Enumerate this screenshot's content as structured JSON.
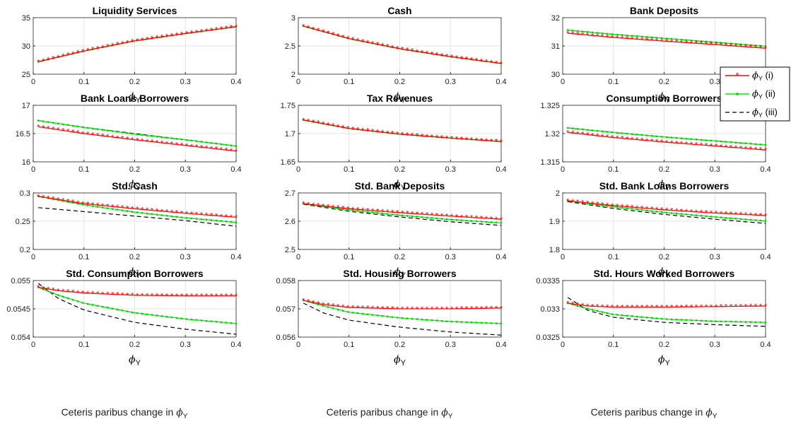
{
  "figure": {
    "bottom_caption": "Ceteris paribus change in",
    "bottom_caption_symbol": "ϕ",
    "bottom_caption_subscript": "Y",
    "x_label_symbol": "ϕ",
    "x_label_subscript": "Y"
  },
  "legend": {
    "entries": [
      {
        "symbol": "ϕ",
        "subscript": "Y",
        "suffix": "(i)",
        "color": "#ff0000",
        "style": "red line with asterisk markers"
      },
      {
        "symbol": "ϕ",
        "subscript": "Y",
        "suffix": "(ii)",
        "color": "#00ee00",
        "style": "green line with dot markers"
      },
      {
        "symbol": "ϕ",
        "subscript": "Y",
        "suffix": "(iii)",
        "color": "#000000",
        "style": "black dashed line"
      }
    ],
    "placement": "right of top-right panel"
  },
  "chart_data": [
    {
      "type": "line",
      "title": "Liquidity Services",
      "xlabel": "ϕY",
      "xlim": [
        0,
        0.4
      ],
      "ylim": [
        25,
        35
      ],
      "xticks": [
        "0",
        "0.1",
        "0.2",
        "0.3",
        "0.4"
      ],
      "yticks": [
        "25",
        "30",
        "35"
      ],
      "series": [
        {
          "name": "ϕY (i)",
          "color": "#ff0000",
          "x": [
            0.01,
            0.1,
            0.2,
            0.3,
            0.4
          ],
          "y": [
            27.2,
            29.1,
            30.9,
            32.2,
            33.4
          ]
        },
        {
          "name": "ϕY (ii)",
          "color": "#00ee00",
          "x": [
            0.01,
            0.1,
            0.2,
            0.3,
            0.4
          ],
          "y": [
            27.2,
            29.1,
            30.9,
            32.2,
            33.4
          ]
        },
        {
          "name": "ϕY (iii)",
          "color": "#000000",
          "x": [
            0.01,
            0.1,
            0.2,
            0.3,
            0.4
          ],
          "y": [
            27.2,
            29.1,
            30.9,
            32.2,
            33.4
          ]
        }
      ]
    },
    {
      "type": "line",
      "title": "Cash",
      "xlabel": "ϕY",
      "xlim": [
        0,
        0.4
      ],
      "ylim": [
        2,
        3
      ],
      "xticks": [
        "0",
        "0.1",
        "0.2",
        "0.3",
        "0.4"
      ],
      "yticks": [
        "2",
        "2.5",
        "3"
      ],
      "series": [
        {
          "name": "ϕY (i)",
          "color": "#ff0000",
          "x": [
            0.01,
            0.1,
            0.2,
            0.3,
            0.4
          ],
          "y": [
            2.85,
            2.63,
            2.45,
            2.31,
            2.19
          ]
        },
        {
          "name": "ϕY (ii)",
          "color": "#00ee00",
          "x": [
            0.01,
            0.1,
            0.2,
            0.3,
            0.4
          ],
          "y": [
            2.85,
            2.63,
            2.45,
            2.31,
            2.19
          ]
        },
        {
          "name": "ϕY (iii)",
          "color": "#000000",
          "x": [
            0.01,
            0.1,
            0.2,
            0.3,
            0.4
          ],
          "y": [
            2.85,
            2.63,
            2.45,
            2.31,
            2.19
          ]
        }
      ]
    },
    {
      "type": "line",
      "title": "Bank Deposits",
      "xlabel": "ϕY",
      "xlim": [
        0,
        0.4
      ],
      "ylim": [
        30,
        32
      ],
      "xticks": [
        "0",
        "0.1",
        "0.2",
        "0.3",
        "0.4"
      ],
      "yticks": [
        "30",
        "31",
        "32"
      ],
      "series": [
        {
          "name": "ϕY (i)",
          "color": "#ff0000",
          "x": [
            0.01,
            0.1,
            0.2,
            0.3,
            0.4
          ],
          "y": [
            31.45,
            31.3,
            31.17,
            31.05,
            30.92
          ]
        },
        {
          "name": "ϕY (ii)",
          "color": "#00ee00",
          "x": [
            0.01,
            0.1,
            0.2,
            0.3,
            0.4
          ],
          "y": [
            31.56,
            31.41,
            31.27,
            31.13,
            30.99
          ]
        },
        {
          "name": "ϕY (iii)",
          "color": "#000000",
          "x": [
            0.01,
            0.1,
            0.2,
            0.3,
            0.4
          ],
          "y": [
            31.56,
            31.41,
            31.27,
            31.13,
            30.99
          ]
        }
      ]
    },
    {
      "type": "line",
      "title": "Bank Loans Borrowers",
      "xlabel": "ϕY",
      "xlim": [
        0,
        0.4
      ],
      "ylim": [
        16,
        17
      ],
      "xticks": [
        "0",
        "0.1",
        "0.2",
        "0.3",
        "0.4"
      ],
      "yticks": [
        "16",
        "16.5",
        "17"
      ],
      "series": [
        {
          "name": "ϕY (i)",
          "color": "#ff0000",
          "x": [
            0.01,
            0.1,
            0.2,
            0.3,
            0.4
          ],
          "y": [
            16.62,
            16.5,
            16.39,
            16.29,
            16.19
          ]
        },
        {
          "name": "ϕY (ii)",
          "color": "#00ee00",
          "x": [
            0.01,
            0.1,
            0.2,
            0.3,
            0.4
          ],
          "y": [
            16.73,
            16.61,
            16.49,
            16.39,
            16.28
          ]
        },
        {
          "name": "ϕY (iii)",
          "color": "#000000",
          "x": [
            0.01,
            0.1,
            0.2,
            0.3,
            0.4
          ],
          "y": [
            16.73,
            16.61,
            16.5,
            16.39,
            16.28
          ]
        }
      ]
    },
    {
      "type": "line",
      "title": "Tax Revenues",
      "xlabel": "ϕY",
      "xlim": [
        0,
        0.4
      ],
      "ylim": [
        1.65,
        1.75
      ],
      "xticks": [
        "0",
        "0.1",
        "0.2",
        "0.3",
        "0.4"
      ],
      "yticks": [
        "1.65",
        "1.7",
        "1.75"
      ],
      "series": [
        {
          "name": "ϕY (i)",
          "color": "#ff0000",
          "x": [
            0.01,
            0.1,
            0.2,
            0.3,
            0.4
          ],
          "y": [
            1.724,
            1.709,
            1.699,
            1.692,
            1.686
          ]
        },
        {
          "name": "ϕY (ii)",
          "color": "#00ee00",
          "x": [
            0.01,
            0.1,
            0.2,
            0.3,
            0.4
          ],
          "y": [
            1.724,
            1.709,
            1.699,
            1.692,
            1.686
          ]
        },
        {
          "name": "ϕY (iii)",
          "color": "#000000",
          "x": [
            0.01,
            0.1,
            0.2,
            0.3,
            0.4
          ],
          "y": [
            1.724,
            1.709,
            1.699,
            1.692,
            1.686
          ]
        }
      ]
    },
    {
      "type": "line",
      "title": "Consumption Borrowers",
      "xlabel": "ϕY",
      "xlim": [
        0,
        0.4
      ],
      "ylim": [
        1.315,
        1.325
      ],
      "xticks": [
        "0",
        "0.1",
        "0.2",
        "0.3",
        "0.4"
      ],
      "yticks": [
        "1.315",
        "1.32",
        "1.325"
      ],
      "series": [
        {
          "name": "ϕY (i)",
          "color": "#ff0000",
          "x": [
            0.01,
            0.1,
            0.2,
            0.3,
            0.4
          ],
          "y": [
            1.3202,
            1.3193,
            1.3185,
            1.3178,
            1.3171
          ]
        },
        {
          "name": "ϕY (ii)",
          "color": "#00ee00",
          "x": [
            0.01,
            0.1,
            0.2,
            0.3,
            0.4
          ],
          "y": [
            1.321,
            1.3202,
            1.3194,
            1.3187,
            1.318
          ]
        },
        {
          "name": "ϕY (iii)",
          "color": "#000000",
          "x": [
            0.01,
            0.1,
            0.2,
            0.3,
            0.4
          ],
          "y": [
            1.321,
            1.3202,
            1.3194,
            1.3187,
            1.318
          ]
        }
      ]
    },
    {
      "type": "line",
      "title": "Std. Cash",
      "xlabel": "ϕY",
      "xlim": [
        0,
        0.4
      ],
      "ylim": [
        0.2,
        0.3
      ],
      "xticks": [
        "0",
        "0.1",
        "0.2",
        "0.3",
        "0.4"
      ],
      "yticks": [
        "0.2",
        "0.25",
        "0.3"
      ],
      "series": [
        {
          "name": "ϕY (i)",
          "color": "#ff0000",
          "x": [
            0.01,
            0.1,
            0.2,
            0.3,
            0.4
          ],
          "y": [
            0.294,
            0.281,
            0.272,
            0.264,
            0.257
          ]
        },
        {
          "name": "ϕY (ii)",
          "color": "#00ee00",
          "x": [
            0.01,
            0.1,
            0.2,
            0.3,
            0.4
          ],
          "y": [
            0.294,
            0.279,
            0.266,
            0.256,
            0.248
          ]
        },
        {
          "name": "ϕY (iii)",
          "color": "#000000",
          "x": [
            0.01,
            0.1,
            0.2,
            0.3,
            0.4
          ],
          "y": [
            0.274,
            0.267,
            0.259,
            0.251,
            0.241
          ]
        }
      ]
    },
    {
      "type": "line",
      "title": "Std. Bank Deposits",
      "xlabel": "ϕY",
      "xlim": [
        0,
        0.4
      ],
      "ylim": [
        2.5,
        2.7
      ],
      "xticks": [
        "0",
        "0.1",
        "0.2",
        "0.3",
        "0.4"
      ],
      "yticks": [
        "2.5",
        "2.6",
        "2.7"
      ],
      "series": [
        {
          "name": "ϕY (i)",
          "color": "#ff0000",
          "x": [
            0.01,
            0.1,
            0.2,
            0.3,
            0.4
          ],
          "y": [
            2.662,
            2.644,
            2.63,
            2.618,
            2.607
          ]
        },
        {
          "name": "ϕY (ii)",
          "color": "#00ee00",
          "x": [
            0.01,
            0.1,
            0.2,
            0.3,
            0.4
          ],
          "y": [
            2.662,
            2.64,
            2.621,
            2.606,
            2.594
          ]
        },
        {
          "name": "ϕY (iii)",
          "color": "#000000",
          "x": [
            0.01,
            0.1,
            0.2,
            0.3,
            0.4
          ],
          "y": [
            2.66,
            2.635,
            2.615,
            2.598,
            2.585
          ]
        }
      ]
    },
    {
      "type": "line",
      "title": "Std. Bank Loans Borrowers",
      "xlabel": "ϕY",
      "xlim": [
        0,
        0.4
      ],
      "ylim": [
        1.8,
        2
      ],
      "xticks": [
        "0",
        "0.1",
        "0.2",
        "0.3",
        "0.4"
      ],
      "yticks": [
        "1.8",
        "1.9",
        "2"
      ],
      "series": [
        {
          "name": "ϕY (i)",
          "color": "#ff0000",
          "x": [
            0.01,
            0.1,
            0.2,
            0.3,
            0.4
          ],
          "y": [
            1.972,
            1.955,
            1.94,
            1.929,
            1.92
          ]
        },
        {
          "name": "ϕY (ii)",
          "color": "#00ee00",
          "x": [
            0.01,
            0.1,
            0.2,
            0.3,
            0.4
          ],
          "y": [
            1.972,
            1.951,
            1.931,
            1.915,
            1.901
          ]
        },
        {
          "name": "ϕY (iii)",
          "color": "#000000",
          "x": [
            0.01,
            0.1,
            0.2,
            0.3,
            0.4
          ],
          "y": [
            1.969,
            1.945,
            1.924,
            1.907,
            1.892
          ]
        }
      ]
    },
    {
      "type": "line",
      "title": "Std. Consumption Borrowers",
      "xlabel": "ϕY",
      "xlim": [
        0,
        0.4
      ],
      "ylim": [
        0.054,
        0.055
      ],
      "xticks": [
        "0",
        "0.1",
        "0.2",
        "0.3",
        "0.4"
      ],
      "yticks": [
        "0.054",
        "0.0545",
        "0.055"
      ],
      "series": [
        {
          "name": "ϕY (i)",
          "color": "#ff0000",
          "x": [
            0.01,
            0.05,
            0.1,
            0.2,
            0.3,
            0.4
          ],
          "y": [
            0.05488,
            0.05482,
            0.05478,
            0.05474,
            0.05473,
            0.05473
          ]
        },
        {
          "name": "ϕY (ii)",
          "color": "#00ee00",
          "x": [
            0.01,
            0.05,
            0.1,
            0.2,
            0.3,
            0.4
          ],
          "y": [
            0.05488,
            0.05474,
            0.0546,
            0.05443,
            0.05432,
            0.05424
          ]
        },
        {
          "name": "ϕY (iii)",
          "color": "#000000",
          "x": [
            0.01,
            0.05,
            0.1,
            0.2,
            0.3,
            0.4
          ],
          "y": [
            0.05495,
            0.05468,
            0.05448,
            0.05426,
            0.05414,
            0.05405
          ]
        }
      ]
    },
    {
      "type": "line",
      "title": "Std. Housing Borrowers",
      "xlabel": "ϕY",
      "xlim": [
        0,
        0.4
      ],
      "ylim": [
        0.056,
        0.058
      ],
      "xticks": [
        "0",
        "0.1",
        "0.2",
        "0.3",
        "0.4"
      ],
      "yticks": [
        "0.056",
        "0.057",
        "0.058"
      ],
      "series": [
        {
          "name": "ϕY (i)",
          "color": "#ff0000",
          "x": [
            0.01,
            0.05,
            0.1,
            0.2,
            0.3,
            0.4
          ],
          "y": [
            0.0573,
            0.05715,
            0.05705,
            0.057,
            0.057,
            0.05703
          ]
        },
        {
          "name": "ϕY (ii)",
          "color": "#00ee00",
          "x": [
            0.01,
            0.05,
            0.1,
            0.2,
            0.3,
            0.4
          ],
          "y": [
            0.0573,
            0.0571,
            0.05688,
            0.05668,
            0.05655,
            0.05648
          ]
        },
        {
          "name": "ϕY (iii)",
          "color": "#000000",
          "x": [
            0.01,
            0.05,
            0.1,
            0.2,
            0.3,
            0.4
          ],
          "y": [
            0.0572,
            0.05685,
            0.0566,
            0.05635,
            0.05618,
            0.05607
          ]
        }
      ]
    },
    {
      "type": "line",
      "title": "Std. Hours Worked Borrowers",
      "xlabel": "ϕY",
      "xlim": [
        0,
        0.4
      ],
      "ylim": [
        0.0325,
        0.0335
      ],
      "xticks": [
        "0",
        "0.1",
        "0.2",
        "0.3",
        "0.4"
      ],
      "yticks": [
        "0.0325",
        "0.033",
        "0.0335"
      ],
      "series": [
        {
          "name": "ϕY (i)",
          "color": "#ff0000",
          "x": [
            0.01,
            0.05,
            0.1,
            0.2,
            0.3,
            0.4
          ],
          "y": [
            0.0331,
            0.03305,
            0.03303,
            0.03303,
            0.03304,
            0.03305
          ]
        },
        {
          "name": "ϕY (ii)",
          "color": "#00ee00",
          "x": [
            0.01,
            0.05,
            0.1,
            0.2,
            0.3,
            0.4
          ],
          "y": [
            0.0331,
            0.033,
            0.0329,
            0.03282,
            0.03278,
            0.03276
          ]
        },
        {
          "name": "ϕY (iii)",
          "color": "#000000",
          "x": [
            0.01,
            0.05,
            0.1,
            0.2,
            0.3,
            0.4
          ],
          "y": [
            0.0332,
            0.03297,
            0.03285,
            0.03276,
            0.03272,
            0.03269
          ]
        }
      ]
    }
  ]
}
